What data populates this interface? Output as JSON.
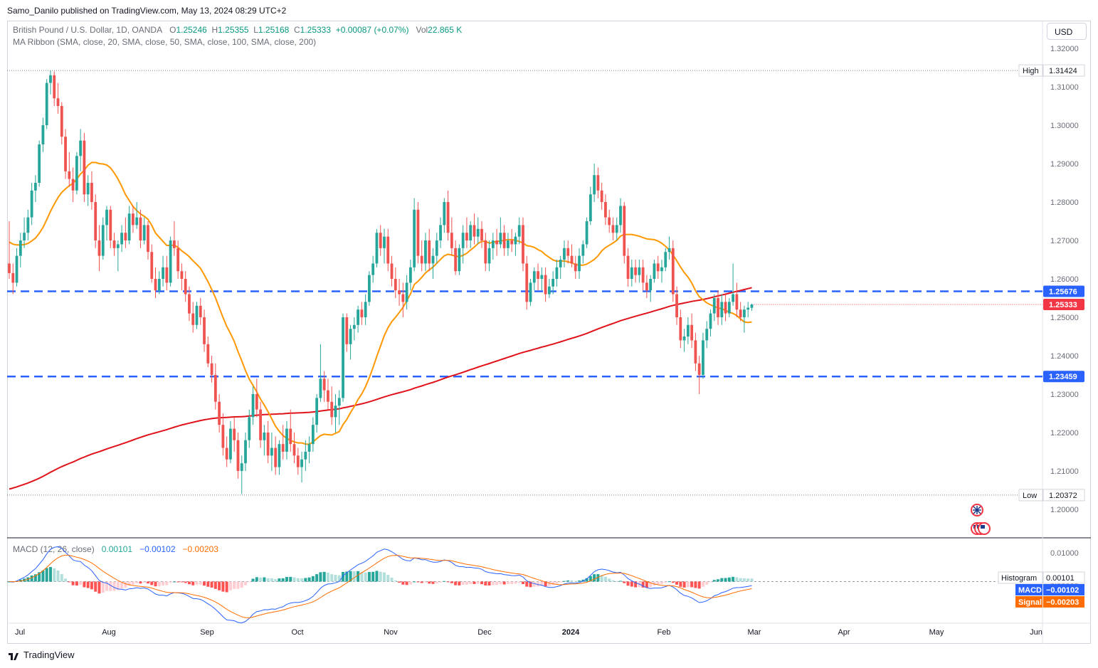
{
  "header": {
    "publisher": "Samo_Danilo published on TradingView.com, May 13, 2024 08:29 UTC+2",
    "symbol": "British Pound / U.S. Dollar, 1D, OANDA",
    "open_label": "O",
    "open": "1.25246",
    "high_label": "H",
    "high": "1.25355",
    "low_label": "L",
    "low": "1.25168",
    "close_label": "C",
    "close": "1.25333",
    "change": "+0.00087 (+0.07%)",
    "vol_label": "Vol",
    "vol": "22.865 K",
    "ma_ribbon": "MA Ribbon (SMA, close, 20, SMA, close, 50, SMA, close, 100, SMA, close, 200)",
    "currency_button": "USD"
  },
  "macd_legend": {
    "label": "MACD (12, 26, close)",
    "histogram": "0.00101",
    "macd": "−0.00102",
    "signal": "−0.00203"
  },
  "footer": {
    "brand": "TradingView"
  },
  "colors": {
    "up": "#26a69a",
    "down": "#ef5350",
    "sma20": "#ff9800",
    "sma200": "#e0121a",
    "level_line": "#2962ff",
    "macd_line": "#2962ff",
    "signal_line": "#ff6d00"
  },
  "chart_data": {
    "type": "candlestick",
    "ylim": [
      1.195,
      1.325
    ],
    "y_ticks": [
      "1.32000",
      "1.31000",
      "1.30000",
      "1.29000",
      "1.28000",
      "1.27000",
      "1.26000",
      "1.25000",
      "1.24000",
      "1.23000",
      "1.22000",
      "1.21000",
      "1.20000"
    ],
    "x_ticks": [
      "Jul",
      "Aug",
      "Sep",
      "Oct",
      "Nov",
      "Dec",
      "2024",
      "Feb",
      "Mar",
      "Apr",
      "May",
      "Jun"
    ],
    "high_marker": {
      "label": "High",
      "value": "1.31424"
    },
    "low_marker": {
      "label": "Low",
      "value": "1.20372"
    },
    "levels": [
      {
        "value": "1.25676",
        "color": "#2962ff"
      },
      {
        "value": "1.23459",
        "color": "#2962ff"
      }
    ],
    "last_price": {
      "value": "1.25333",
      "color": "#f23645"
    },
    "ohlc": [
      [
        1.264,
        1.275,
        1.26,
        1.2615
      ],
      [
        1.2615,
        1.264,
        1.256,
        1.259
      ],
      [
        1.259,
        1.268,
        1.258,
        1.266
      ],
      [
        1.266,
        1.272,
        1.263,
        1.27
      ],
      [
        1.27,
        1.276,
        1.268,
        1.272
      ],
      [
        1.272,
        1.278,
        1.27,
        1.276
      ],
      [
        1.276,
        1.285,
        1.274,
        1.283
      ],
      [
        1.283,
        1.287,
        1.28,
        1.285
      ],
      [
        1.285,
        1.296,
        1.284,
        1.295
      ],
      [
        1.295,
        1.302,
        1.293,
        1.3
      ],
      [
        1.3,
        1.312,
        1.299,
        1.311
      ],
      [
        1.311,
        1.3142,
        1.308,
        1.313
      ],
      [
        1.313,
        1.314,
        1.305,
        1.307
      ],
      [
        1.307,
        1.311,
        1.303,
        1.305
      ],
      [
        1.305,
        1.306,
        1.295,
        1.297
      ],
      [
        1.297,
        1.299,
        1.286,
        1.288
      ],
      [
        1.288,
        1.293,
        1.284,
        1.286
      ],
      [
        1.286,
        1.289,
        1.28,
        1.283
      ],
      [
        1.283,
        1.293,
        1.282,
        1.292
      ],
      [
        1.292,
        1.299,
        1.288,
        1.296
      ],
      [
        1.296,
        1.298,
        1.28,
        1.282
      ],
      [
        1.282,
        1.287,
        1.279,
        1.285
      ],
      [
        1.285,
        1.288,
        1.278,
        1.28
      ],
      [
        1.28,
        1.282,
        1.268,
        1.27
      ],
      [
        1.27,
        1.274,
        1.262,
        1.266
      ],
      [
        1.266,
        1.276,
        1.265,
        1.274
      ],
      [
        1.274,
        1.279,
        1.27,
        1.278
      ],
      [
        1.278,
        1.279,
        1.268,
        1.27
      ],
      [
        1.27,
        1.272,
        1.266,
        1.268
      ],
      [
        1.268,
        1.27,
        1.262,
        1.269
      ],
      [
        1.269,
        1.274,
        1.267,
        1.272
      ],
      [
        1.272,
        1.276,
        1.268,
        1.27
      ],
      [
        1.27,
        1.279,
        1.269,
        1.277
      ],
      [
        1.277,
        1.279,
        1.272,
        1.274
      ],
      [
        1.274,
        1.28,
        1.273,
        1.276
      ],
      [
        1.276,
        1.278,
        1.268,
        1.27
      ],
      [
        1.27,
        1.276,
        1.269,
        1.274
      ],
      [
        1.274,
        1.275,
        1.265,
        1.267
      ],
      [
        1.267,
        1.269,
        1.259,
        1.26
      ],
      [
        1.26,
        1.263,
        1.255,
        1.257
      ],
      [
        1.257,
        1.262,
        1.256,
        1.26
      ],
      [
        1.26,
        1.266,
        1.258,
        1.263
      ],
      [
        1.263,
        1.266,
        1.257,
        1.259
      ],
      [
        1.259,
        1.271,
        1.258,
        1.27
      ],
      [
        1.27,
        1.275,
        1.266,
        1.268
      ],
      [
        1.268,
        1.27,
        1.26,
        1.262
      ],
      [
        1.262,
        1.264,
        1.257,
        1.26
      ],
      [
        1.26,
        1.262,
        1.254,
        1.256
      ],
      [
        1.256,
        1.258,
        1.249,
        1.251
      ],
      [
        1.251,
        1.254,
        1.246,
        1.248
      ],
      [
        1.248,
        1.254,
        1.247,
        1.253
      ],
      [
        1.253,
        1.255,
        1.248,
        1.25
      ],
      [
        1.25,
        1.252,
        1.241,
        1.243
      ],
      [
        1.243,
        1.245,
        1.237,
        1.238
      ],
      [
        1.238,
        1.24,
        1.233,
        1.235
      ],
      [
        1.235,
        1.238,
        1.226,
        1.228
      ],
      [
        1.228,
        1.23,
        1.22,
        1.222
      ],
      [
        1.222,
        1.225,
        1.214,
        1.216
      ],
      [
        1.216,
        1.219,
        1.211,
        1.213
      ],
      [
        1.213,
        1.223,
        1.212,
        1.221
      ],
      [
        1.221,
        1.224,
        1.215,
        1.218
      ],
      [
        1.218,
        1.22,
        1.208,
        1.21
      ],
      [
        1.21,
        1.214,
        1.204,
        1.212
      ],
      [
        1.212,
        1.22,
        1.21,
        1.218
      ],
      [
        1.218,
        1.226,
        1.216,
        1.224
      ],
      [
        1.224,
        1.232,
        1.222,
        1.23
      ],
      [
        1.23,
        1.234,
        1.224,
        1.226
      ],
      [
        1.226,
        1.228,
        1.216,
        1.218
      ],
      [
        1.218,
        1.222,
        1.214,
        1.22
      ],
      [
        1.22,
        1.223,
        1.212,
        1.214
      ],
      [
        1.214,
        1.22,
        1.21,
        1.216
      ],
      [
        1.216,
        1.219,
        1.209,
        1.211
      ],
      [
        1.211,
        1.218,
        1.209,
        1.217
      ],
      [
        1.217,
        1.222,
        1.213,
        1.215
      ],
      [
        1.215,
        1.223,
        1.213,
        1.221
      ],
      [
        1.221,
        1.226,
        1.215,
        1.217
      ],
      [
        1.217,
        1.22,
        1.212,
        1.214
      ],
      [
        1.214,
        1.216,
        1.209,
        1.211
      ],
      [
        1.211,
        1.215,
        1.207,
        1.213
      ],
      [
        1.213,
        1.218,
        1.21,
        1.215
      ],
      [
        1.215,
        1.219,
        1.212,
        1.217
      ],
      [
        1.217,
        1.224,
        1.215,
        1.222
      ],
      [
        1.222,
        1.23,
        1.22,
        1.229
      ],
      [
        1.229,
        1.243,
        1.228,
        1.234
      ],
      [
        1.234,
        1.236,
        1.228,
        1.231
      ],
      [
        1.231,
        1.234,
        1.226,
        1.228
      ],
      [
        1.228,
        1.232,
        1.222,
        1.224
      ],
      [
        1.224,
        1.23,
        1.22,
        1.227
      ],
      [
        1.227,
        1.231,
        1.222,
        1.229
      ],
      [
        1.229,
        1.251,
        1.228,
        1.25
      ],
      [
        1.25,
        1.251,
        1.241,
        1.243
      ],
      [
        1.243,
        1.248,
        1.239,
        1.247
      ],
      [
        1.247,
        1.25,
        1.244,
        1.248
      ],
      [
        1.248,
        1.253,
        1.246,
        1.252
      ],
      [
        1.252,
        1.254,
        1.248,
        1.25
      ],
      [
        1.25,
        1.256,
        1.248,
        1.254
      ],
      [
        1.254,
        1.262,
        1.253,
        1.261
      ],
      [
        1.261,
        1.266,
        1.259,
        1.264
      ],
      [
        1.264,
        1.273,
        1.263,
        1.272
      ],
      [
        1.272,
        1.274,
        1.266,
        1.268
      ],
      [
        1.268,
        1.273,
        1.264,
        1.271
      ],
      [
        1.271,
        1.273,
        1.262,
        1.264
      ],
      [
        1.264,
        1.266,
        1.258,
        1.26
      ],
      [
        1.26,
        1.263,
        1.255,
        1.257
      ],
      [
        1.257,
        1.26,
        1.253,
        1.256
      ],
      [
        1.256,
        1.259,
        1.25,
        1.254
      ],
      [
        1.254,
        1.261,
        1.252,
        1.259
      ],
      [
        1.259,
        1.265,
        1.257,
        1.263
      ],
      [
        1.263,
        1.281,
        1.262,
        1.278
      ],
      [
        1.278,
        1.28,
        1.264,
        1.266
      ],
      [
        1.266,
        1.27,
        1.262,
        1.264
      ],
      [
        1.264,
        1.272,
        1.262,
        1.27
      ],
      [
        1.27,
        1.273,
        1.262,
        1.264
      ],
      [
        1.264,
        1.268,
        1.26,
        1.266
      ],
      [
        1.266,
        1.272,
        1.264,
        1.27
      ],
      [
        1.27,
        1.276,
        1.268,
        1.274
      ],
      [
        1.274,
        1.281,
        1.272,
        1.28
      ],
      [
        1.28,
        1.283,
        1.27,
        1.272
      ],
      [
        1.272,
        1.276,
        1.266,
        1.268
      ],
      [
        1.268,
        1.27,
        1.261,
        1.262
      ],
      [
        1.262,
        1.269,
        1.261,
        1.268
      ],
      [
        1.268,
        1.274,
        1.264,
        1.272
      ],
      [
        1.272,
        1.276,
        1.268,
        1.27
      ],
      [
        1.27,
        1.275,
        1.268,
        1.274
      ],
      [
        1.274,
        1.277,
        1.269,
        1.271
      ],
      [
        1.271,
        1.276,
        1.269,
        1.273
      ],
      [
        1.273,
        1.275,
        1.268,
        1.27
      ],
      [
        1.27,
        1.272,
        1.262,
        1.264
      ],
      [
        1.264,
        1.27,
        1.262,
        1.268
      ],
      [
        1.268,
        1.272,
        1.265,
        1.27
      ],
      [
        1.27,
        1.273,
        1.266,
        1.269
      ],
      [
        1.269,
        1.276,
        1.268,
        1.272
      ],
      [
        1.272,
        1.274,
        1.266,
        1.268
      ],
      [
        1.268,
        1.272,
        1.266,
        1.27
      ],
      [
        1.27,
        1.273,
        1.267,
        1.269
      ],
      [
        1.269,
        1.272,
        1.266,
        1.271
      ],
      [
        1.271,
        1.276,
        1.269,
        1.274
      ],
      [
        1.274,
        1.276,
        1.262,
        1.264
      ],
      [
        1.264,
        1.266,
        1.252,
        1.254
      ],
      [
        1.254,
        1.26,
        1.253,
        1.259
      ],
      [
        1.259,
        1.263,
        1.257,
        1.262
      ],
      [
        1.262,
        1.264,
        1.257,
        1.26
      ],
      [
        1.26,
        1.263,
        1.257,
        1.261
      ],
      [
        1.261,
        1.263,
        1.254,
        1.256
      ],
      [
        1.256,
        1.26,
        1.255,
        1.258
      ],
      [
        1.258,
        1.262,
        1.256,
        1.26
      ],
      [
        1.26,
        1.265,
        1.258,
        1.263
      ],
      [
        1.263,
        1.266,
        1.26,
        1.265
      ],
      [
        1.265,
        1.27,
        1.263,
        1.268
      ],
      [
        1.268,
        1.27,
        1.264,
        1.266
      ],
      [
        1.266,
        1.269,
        1.263,
        1.264
      ],
      [
        1.264,
        1.266,
        1.26,
        1.262
      ],
      [
        1.262,
        1.268,
        1.26,
        1.266
      ],
      [
        1.266,
        1.27,
        1.264,
        1.269
      ],
      [
        1.269,
        1.276,
        1.268,
        1.275
      ],
      [
        1.275,
        1.284,
        1.274,
        1.282
      ],
      [
        1.282,
        1.29,
        1.28,
        1.287
      ],
      [
        1.287,
        1.289,
        1.281,
        1.283
      ],
      [
        1.283,
        1.285,
        1.278,
        1.28
      ],
      [
        1.28,
        1.282,
        1.274,
        1.276
      ],
      [
        1.276,
        1.278,
        1.272,
        1.274
      ],
      [
        1.274,
        1.276,
        1.27,
        1.272
      ],
      [
        1.272,
        1.276,
        1.27,
        1.274
      ],
      [
        1.274,
        1.281,
        1.272,
        1.279
      ],
      [
        1.279,
        1.28,
        1.264,
        1.266
      ],
      [
        1.266,
        1.268,
        1.258,
        1.26
      ],
      [
        1.26,
        1.265,
        1.258,
        1.263
      ],
      [
        1.263,
        1.265,
        1.259,
        1.261
      ],
      [
        1.261,
        1.265,
        1.259,
        1.263
      ],
      [
        1.263,
        1.265,
        1.257,
        1.259
      ],
      [
        1.259,
        1.261,
        1.255,
        1.257
      ],
      [
        1.257,
        1.261,
        1.254,
        1.26
      ],
      [
        1.26,
        1.265,
        1.259,
        1.264
      ],
      [
        1.264,
        1.266,
        1.26,
        1.262
      ],
      [
        1.262,
        1.265,
        1.259,
        1.263
      ],
      [
        1.263,
        1.268,
        1.262,
        1.267
      ],
      [
        1.267,
        1.271,
        1.265,
        1.268
      ],
      [
        1.268,
        1.27,
        1.254,
        1.256
      ],
      [
        1.256,
        1.258,
        1.248,
        1.25
      ],
      [
        1.25,
        1.252,
        1.242,
        1.244
      ],
      [
        1.244,
        1.247,
        1.241,
        1.245
      ],
      [
        1.245,
        1.25,
        1.243,
        1.248
      ],
      [
        1.248,
        1.251,
        1.242,
        1.244
      ],
      [
        1.244,
        1.246,
        1.236,
        1.238
      ],
      [
        1.238,
        1.24,
        1.23,
        1.235
      ],
      [
        1.235,
        1.246,
        1.234,
        1.244
      ],
      [
        1.244,
        1.249,
        1.242,
        1.247
      ],
      [
        1.247,
        1.252,
        1.245,
        1.251
      ],
      [
        1.251,
        1.256,
        1.249,
        1.255
      ],
      [
        1.255,
        1.257,
        1.248,
        1.25
      ],
      [
        1.25,
        1.256,
        1.248,
        1.254
      ],
      [
        1.254,
        1.256,
        1.249,
        1.251
      ],
      [
        1.251,
        1.255,
        1.25,
        1.254
      ],
      [
        1.254,
        1.264,
        1.253,
        1.256
      ],
      [
        1.256,
        1.259,
        1.25,
        1.252
      ],
      [
        1.252,
        1.254,
        1.249,
        1.25
      ],
      [
        1.25,
        1.253,
        1.246,
        1.252
      ],
      [
        1.252,
        1.254,
        1.25,
        1.2525
      ],
      [
        1.25246,
        1.25355,
        1.25168,
        1.25333
      ]
    ],
    "macd": {
      "histogram": "0.00101",
      "macd": "-0.00102",
      "signal": "-0.00203",
      "labels": {
        "histogram": "Histogram",
        "macd": "MACD",
        "signal": "Signal"
      },
      "ylim": [
        -0.0094,
        0.0118
      ],
      "y_ticks": [
        "0.01000",
        "0.00000"
      ]
    }
  }
}
